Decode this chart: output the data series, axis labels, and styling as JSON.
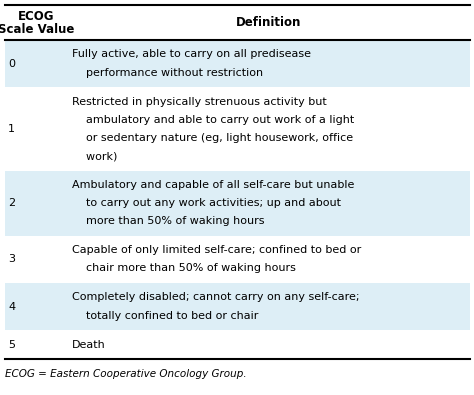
{
  "title_line1": "ECOG",
  "title_line2": "Scale Value",
  "col2_header": "Definition",
  "rows": [
    {
      "scale": "0",
      "definition": "Fully active, able to carry on all predisease\n    performance without restriction",
      "shaded": true
    },
    {
      "scale": "1",
      "definition": "Restricted in physically strenuous activity but\n    ambulatory and able to carry out work of a light\n    or sedentary nature (eg, light housework, office\n    work)",
      "shaded": false
    },
    {
      "scale": "2",
      "definition": "Ambulatory and capable of all self-care but unable\n    to carry out any work activities; up and about\n    more than 50% of waking hours",
      "shaded": true
    },
    {
      "scale": "3",
      "definition": "Capable of only limited self-care; confined to bed or\n    chair more than 50% of waking hours",
      "shaded": false
    },
    {
      "scale": "4",
      "definition": "Completely disabled; cannot carry on any self-care;\n    totally confined to bed or chair",
      "shaded": true
    },
    {
      "scale": "5",
      "definition": "Death",
      "shaded": false
    }
  ],
  "footnote": "ECOG = Eastern Cooperative Oncology Group.",
  "bg_shaded": "#ddeef6",
  "bg_white": "#ffffff",
  "border_color": "#000000",
  "text_color": "#000000",
  "header_fontsize": 8.5,
  "cell_fontsize": 8.0,
  "footnote_fontsize": 7.5
}
